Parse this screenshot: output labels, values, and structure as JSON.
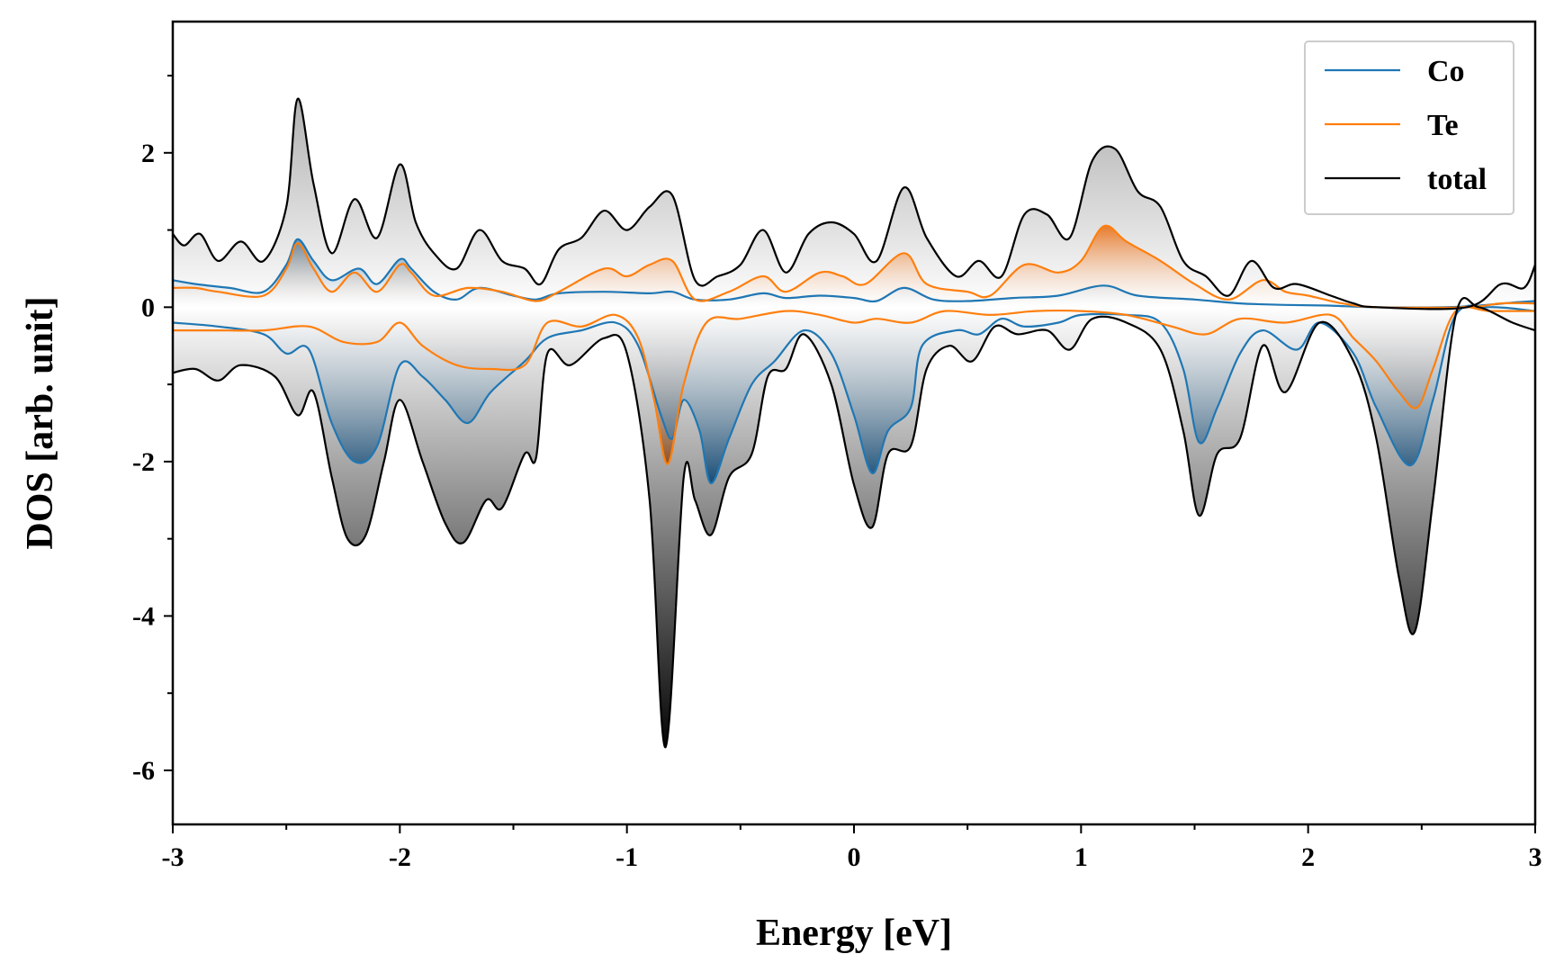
{
  "chart_data": {
    "type": "line",
    "title": "",
    "xlabel": "Energy [eV]",
    "ylabel": "DOS [arb. unit]",
    "xlim": [
      -3,
      3
    ],
    "ylim": [
      -6.7,
      3.7
    ],
    "xticks": [
      -3,
      -2,
      -1,
      0,
      1,
      2,
      3
    ],
    "yticks": [
      -6,
      -4,
      -2,
      0,
      2
    ],
    "grid": false,
    "legend_position": "top-right",
    "series": [
      {
        "name": "Co",
        "color": "#1f77b4",
        "up": [
          [
            -3.0,
            0.35
          ],
          [
            -2.9,
            0.3
          ],
          [
            -2.75,
            0.25
          ],
          [
            -2.6,
            0.2
          ],
          [
            -2.5,
            0.55
          ],
          [
            -2.45,
            0.88
          ],
          [
            -2.38,
            0.6
          ],
          [
            -2.3,
            0.35
          ],
          [
            -2.18,
            0.5
          ],
          [
            -2.1,
            0.3
          ],
          [
            -2.0,
            0.62
          ],
          [
            -1.95,
            0.5
          ],
          [
            -1.85,
            0.2
          ],
          [
            -1.75,
            0.1
          ],
          [
            -1.65,
            0.25
          ],
          [
            -1.5,
            0.15
          ],
          [
            -1.4,
            0.1
          ],
          [
            -1.3,
            0.18
          ],
          [
            -1.1,
            0.2
          ],
          [
            -0.9,
            0.18
          ],
          [
            -0.8,
            0.2
          ],
          [
            -0.7,
            0.1
          ],
          [
            -0.55,
            0.1
          ],
          [
            -0.4,
            0.18
          ],
          [
            -0.3,
            0.12
          ],
          [
            -0.15,
            0.15
          ],
          [
            0.0,
            0.12
          ],
          [
            0.1,
            0.08
          ],
          [
            0.22,
            0.25
          ],
          [
            0.35,
            0.1
          ],
          [
            0.5,
            0.08
          ],
          [
            0.7,
            0.12
          ],
          [
            0.9,
            0.15
          ],
          [
            1.1,
            0.28
          ],
          [
            1.25,
            0.15
          ],
          [
            1.5,
            0.1
          ],
          [
            1.7,
            0.05
          ],
          [
            1.9,
            0.03
          ],
          [
            2.1,
            0.02
          ],
          [
            2.3,
            0.0
          ],
          [
            2.6,
            0.0
          ],
          [
            2.75,
            0.02
          ],
          [
            2.9,
            0.06
          ],
          [
            3.0,
            0.08
          ]
        ],
        "down": [
          [
            -3.0,
            -0.2
          ],
          [
            -2.8,
            -0.25
          ],
          [
            -2.6,
            -0.35
          ],
          [
            -2.5,
            -0.6
          ],
          [
            -2.4,
            -0.55
          ],
          [
            -2.3,
            -1.5
          ],
          [
            -2.2,
            -2.0
          ],
          [
            -2.1,
            -1.8
          ],
          [
            -2.0,
            -0.75
          ],
          [
            -1.9,
            -0.9
          ],
          [
            -1.8,
            -1.2
          ],
          [
            -1.7,
            -1.5
          ],
          [
            -1.6,
            -1.1
          ],
          [
            -1.45,
            -0.7
          ],
          [
            -1.35,
            -0.4
          ],
          [
            -1.2,
            -0.3
          ],
          [
            -1.05,
            -0.2
          ],
          [
            -0.95,
            -0.5
          ],
          [
            -0.85,
            -1.4
          ],
          [
            -0.8,
            -1.7
          ],
          [
            -0.75,
            -1.2
          ],
          [
            -0.68,
            -1.6
          ],
          [
            -0.63,
            -2.28
          ],
          [
            -0.55,
            -1.7
          ],
          [
            -0.45,
            -1.0
          ],
          [
            -0.35,
            -0.7
          ],
          [
            -0.22,
            -0.3
          ],
          [
            -0.1,
            -0.6
          ],
          [
            0.0,
            -1.4
          ],
          [
            0.08,
            -2.15
          ],
          [
            0.15,
            -1.6
          ],
          [
            0.25,
            -1.3
          ],
          [
            0.3,
            -0.5
          ],
          [
            0.45,
            -0.3
          ],
          [
            0.55,
            -0.35
          ],
          [
            0.65,
            -0.15
          ],
          [
            0.75,
            -0.25
          ],
          [
            0.9,
            -0.2
          ],
          [
            1.0,
            -0.1
          ],
          [
            1.2,
            -0.1
          ],
          [
            1.35,
            -0.2
          ],
          [
            1.45,
            -0.8
          ],
          [
            1.52,
            -1.75
          ],
          [
            1.6,
            -1.3
          ],
          [
            1.7,
            -0.6
          ],
          [
            1.8,
            -0.3
          ],
          [
            1.95,
            -0.55
          ],
          [
            2.05,
            -0.2
          ],
          [
            2.2,
            -0.6
          ],
          [
            2.3,
            -1.3
          ],
          [
            2.45,
            -2.05
          ],
          [
            2.55,
            -1.2
          ],
          [
            2.65,
            -0.1
          ],
          [
            2.8,
            0.0
          ],
          [
            3.0,
            -0.05
          ]
        ]
      },
      {
        "name": "Te",
        "color": "#ff7f0e",
        "up": [
          [
            -3.0,
            0.25
          ],
          [
            -2.9,
            0.25
          ],
          [
            -2.8,
            0.2
          ],
          [
            -2.6,
            0.15
          ],
          [
            -2.5,
            0.5
          ],
          [
            -2.45,
            0.83
          ],
          [
            -2.38,
            0.5
          ],
          [
            -2.3,
            0.2
          ],
          [
            -2.2,
            0.45
          ],
          [
            -2.1,
            0.2
          ],
          [
            -2.0,
            0.55
          ],
          [
            -1.95,
            0.45
          ],
          [
            -1.85,
            0.15
          ],
          [
            -1.7,
            0.25
          ],
          [
            -1.55,
            0.2
          ],
          [
            -1.4,
            0.08
          ],
          [
            -1.3,
            0.2
          ],
          [
            -1.1,
            0.5
          ],
          [
            -1.0,
            0.4
          ],
          [
            -0.9,
            0.55
          ],
          [
            -0.8,
            0.6
          ],
          [
            -0.7,
            0.1
          ],
          [
            -0.55,
            0.2
          ],
          [
            -0.4,
            0.4
          ],
          [
            -0.3,
            0.2
          ],
          [
            -0.15,
            0.45
          ],
          [
            -0.05,
            0.4
          ],
          [
            0.05,
            0.3
          ],
          [
            0.22,
            0.7
          ],
          [
            0.32,
            0.3
          ],
          [
            0.5,
            0.2
          ],
          [
            0.6,
            0.15
          ],
          [
            0.75,
            0.55
          ],
          [
            0.9,
            0.45
          ],
          [
            1.0,
            0.6
          ],
          [
            1.1,
            1.05
          ],
          [
            1.2,
            0.85
          ],
          [
            1.35,
            0.6
          ],
          [
            1.5,
            0.3
          ],
          [
            1.65,
            0.1
          ],
          [
            1.8,
            0.35
          ],
          [
            1.9,
            0.2
          ],
          [
            2.0,
            0.15
          ],
          [
            2.15,
            0.05
          ],
          [
            2.3,
            0.0
          ],
          [
            2.7,
            0.0
          ],
          [
            2.85,
            0.05
          ],
          [
            3.0,
            0.05
          ]
        ],
        "down": [
          [
            -3.0,
            -0.3
          ],
          [
            -2.8,
            -0.3
          ],
          [
            -2.6,
            -0.3
          ],
          [
            -2.4,
            -0.25
          ],
          [
            -2.25,
            -0.45
          ],
          [
            -2.1,
            -0.45
          ],
          [
            -2.0,
            -0.2
          ],
          [
            -1.9,
            -0.5
          ],
          [
            -1.75,
            -0.75
          ],
          [
            -1.6,
            -0.8
          ],
          [
            -1.45,
            -0.75
          ],
          [
            -1.35,
            -0.2
          ],
          [
            -1.2,
            -0.25
          ],
          [
            -1.05,
            -0.1
          ],
          [
            -0.95,
            -0.4
          ],
          [
            -0.88,
            -1.2
          ],
          [
            -0.82,
            -2.03
          ],
          [
            -0.75,
            -1.0
          ],
          [
            -0.65,
            -0.2
          ],
          [
            -0.5,
            -0.15
          ],
          [
            -0.3,
            -0.05
          ],
          [
            -0.15,
            -0.1
          ],
          [
            0.0,
            -0.2
          ],
          [
            0.1,
            -0.15
          ],
          [
            0.25,
            -0.2
          ],
          [
            0.4,
            -0.05
          ],
          [
            0.6,
            -0.1
          ],
          [
            0.8,
            -0.05
          ],
          [
            1.0,
            -0.05
          ],
          [
            1.2,
            -0.1
          ],
          [
            1.4,
            -0.25
          ],
          [
            1.55,
            -0.35
          ],
          [
            1.7,
            -0.15
          ],
          [
            1.9,
            -0.2
          ],
          [
            2.1,
            -0.1
          ],
          [
            2.2,
            -0.4
          ],
          [
            2.3,
            -0.7
          ],
          [
            2.4,
            -1.1
          ],
          [
            2.48,
            -1.3
          ],
          [
            2.55,
            -0.8
          ],
          [
            2.65,
            -0.05
          ],
          [
            2.8,
            -0.05
          ],
          [
            3.0,
            -0.05
          ]
        ]
      },
      {
        "name": "total",
        "color": "#000000",
        "up": [
          [
            -3.0,
            0.95
          ],
          [
            -2.95,
            0.8
          ],
          [
            -2.88,
            0.95
          ],
          [
            -2.8,
            0.6
          ],
          [
            -2.7,
            0.85
          ],
          [
            -2.6,
            0.6
          ],
          [
            -2.5,
            1.3
          ],
          [
            -2.45,
            2.7
          ],
          [
            -2.38,
            1.6
          ],
          [
            -2.3,
            0.7
          ],
          [
            -2.2,
            1.4
          ],
          [
            -2.1,
            0.9
          ],
          [
            -2.0,
            1.85
          ],
          [
            -1.93,
            1.1
          ],
          [
            -1.85,
            0.7
          ],
          [
            -1.75,
            0.5
          ],
          [
            -1.65,
            1.0
          ],
          [
            -1.55,
            0.6
          ],
          [
            -1.45,
            0.5
          ],
          [
            -1.38,
            0.3
          ],
          [
            -1.3,
            0.75
          ],
          [
            -1.2,
            0.9
          ],
          [
            -1.1,
            1.25
          ],
          [
            -1.0,
            1.0
          ],
          [
            -0.9,
            1.3
          ],
          [
            -0.8,
            1.45
          ],
          [
            -0.7,
            0.35
          ],
          [
            -0.6,
            0.4
          ],
          [
            -0.5,
            0.55
          ],
          [
            -0.4,
            1.0
          ],
          [
            -0.3,
            0.45
          ],
          [
            -0.2,
            0.95
          ],
          [
            -0.1,
            1.1
          ],
          [
            0.0,
            0.95
          ],
          [
            0.1,
            0.6
          ],
          [
            0.22,
            1.55
          ],
          [
            0.32,
            0.9
          ],
          [
            0.45,
            0.4
          ],
          [
            0.55,
            0.6
          ],
          [
            0.65,
            0.4
          ],
          [
            0.75,
            1.2
          ],
          [
            0.85,
            1.2
          ],
          [
            0.95,
            0.9
          ],
          [
            1.05,
            1.9
          ],
          [
            1.15,
            2.05
          ],
          [
            1.25,
            1.5
          ],
          [
            1.35,
            1.3
          ],
          [
            1.45,
            0.6
          ],
          [
            1.55,
            0.4
          ],
          [
            1.65,
            0.15
          ],
          [
            1.75,
            0.6
          ],
          [
            1.85,
            0.25
          ],
          [
            1.95,
            0.3
          ],
          [
            2.1,
            0.15
          ],
          [
            2.2,
            0.05
          ],
          [
            2.3,
            0.0
          ],
          [
            2.7,
            0.0
          ],
          [
            2.85,
            0.3
          ],
          [
            2.95,
            0.25
          ],
          [
            3.0,
            0.55
          ]
        ],
        "down": [
          [
            -3.0,
            -0.85
          ],
          [
            -2.9,
            -0.8
          ],
          [
            -2.8,
            -0.95
          ],
          [
            -2.7,
            -0.75
          ],
          [
            -2.55,
            -0.9
          ],
          [
            -2.45,
            -1.4
          ],
          [
            -2.38,
            -1.1
          ],
          [
            -2.3,
            -2.2
          ],
          [
            -2.23,
            -3.0
          ],
          [
            -2.15,
            -2.95
          ],
          [
            -2.07,
            -2.0
          ],
          [
            -2.0,
            -1.2
          ],
          [
            -1.9,
            -2.0
          ],
          [
            -1.8,
            -2.8
          ],
          [
            -1.72,
            -3.05
          ],
          [
            -1.62,
            -2.5
          ],
          [
            -1.55,
            -2.6
          ],
          [
            -1.45,
            -1.9
          ],
          [
            -1.4,
            -1.95
          ],
          [
            -1.35,
            -0.6
          ],
          [
            -1.25,
            -0.75
          ],
          [
            -1.1,
            -0.4
          ],
          [
            -1.0,
            -0.6
          ],
          [
            -0.9,
            -2.5
          ],
          [
            -0.83,
            -5.7
          ],
          [
            -0.75,
            -2.2
          ],
          [
            -0.7,
            -2.5
          ],
          [
            -0.63,
            -2.95
          ],
          [
            -0.55,
            -2.2
          ],
          [
            -0.45,
            -1.9
          ],
          [
            -0.38,
            -0.9
          ],
          [
            -0.3,
            -0.8
          ],
          [
            -0.22,
            -0.35
          ],
          [
            -0.1,
            -1.0
          ],
          [
            0.0,
            -2.3
          ],
          [
            0.08,
            -2.85
          ],
          [
            0.15,
            -1.9
          ],
          [
            0.25,
            -1.8
          ],
          [
            0.32,
            -0.8
          ],
          [
            0.42,
            -0.5
          ],
          [
            0.52,
            -0.7
          ],
          [
            0.62,
            -0.25
          ],
          [
            0.72,
            -0.35
          ],
          [
            0.85,
            -0.3
          ],
          [
            0.95,
            -0.55
          ],
          [
            1.05,
            -0.15
          ],
          [
            1.2,
            -0.2
          ],
          [
            1.35,
            -0.55
          ],
          [
            1.45,
            -1.6
          ],
          [
            1.52,
            -2.7
          ],
          [
            1.6,
            -1.9
          ],
          [
            1.7,
            -1.7
          ],
          [
            1.8,
            -0.5
          ],
          [
            1.9,
            -1.1
          ],
          [
            2.05,
            -0.2
          ],
          [
            2.2,
            -0.7
          ],
          [
            2.3,
            -1.7
          ],
          [
            2.4,
            -3.5
          ],
          [
            2.47,
            -4.2
          ],
          [
            2.55,
            -2.5
          ],
          [
            2.65,
            -0.1
          ],
          [
            2.75,
            0.0
          ],
          [
            2.9,
            -0.2
          ],
          [
            3.0,
            -0.3
          ]
        ]
      }
    ]
  }
}
